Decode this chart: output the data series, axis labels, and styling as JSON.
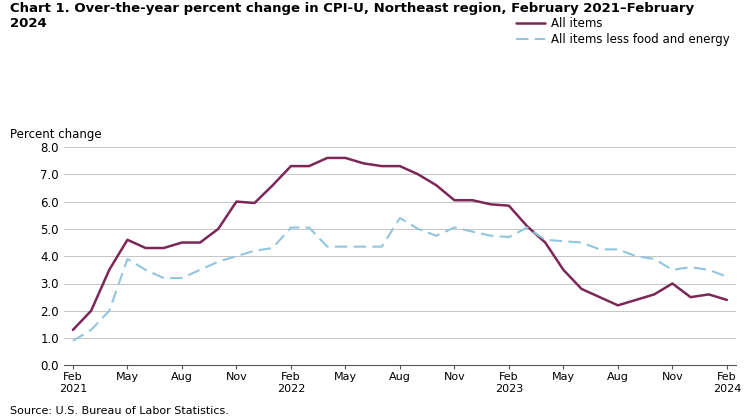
{
  "title": "Chart 1. Over-the-year percent change in CPI-U, Northeast region, February 2021–February\n2024",
  "ylabel": "Percent change",
  "source": "Source: U.S. Bureau of Labor Statistics.",
  "x_labels": [
    "Feb\n2021",
    "May",
    "Aug",
    "Nov",
    "Feb\n2022",
    "May",
    "Aug",
    "Nov",
    "Feb\n2023",
    "May",
    "Aug",
    "Nov",
    "Feb\n2024"
  ],
  "x_positions": [
    0,
    3,
    6,
    9,
    12,
    15,
    18,
    21,
    24,
    27,
    30,
    33,
    36
  ],
  "line1_color": "#7b2857",
  "line2_color": "#92c5de",
  "ylim": [
    0.0,
    8.0
  ],
  "yticks": [
    0.0,
    1.0,
    2.0,
    3.0,
    4.0,
    5.0,
    6.0,
    7.0,
    8.0
  ],
  "legend_label1": "All items",
  "legend_label2": "All items less food and energy",
  "background_color": "#ffffff",
  "grid_color": "#bbbbbb",
  "all_items_values": [
    1.3,
    2.0,
    3.5,
    4.6,
    4.3,
    4.3,
    4.5,
    4.5,
    5.0,
    6.0,
    5.95,
    6.6,
    7.3,
    7.3,
    7.6,
    7.6,
    7.4,
    7.3,
    7.3,
    7.0,
    6.6,
    6.05,
    6.05,
    5.9,
    5.85,
    5.1,
    4.5,
    3.5,
    2.8,
    2.5,
    2.2,
    2.4,
    2.6,
    3.0,
    2.5,
    2.6,
    2.4
  ],
  "all_items_less_values": [
    0.9,
    1.3,
    2.0,
    3.9,
    3.5,
    3.2,
    3.2,
    3.5,
    3.8,
    4.0,
    4.2,
    4.3,
    5.05,
    5.05,
    4.35,
    4.35,
    4.35,
    4.35,
    5.4,
    5.0,
    4.75,
    5.05,
    4.9,
    4.75,
    4.7,
    5.05,
    4.6,
    4.55,
    4.5,
    4.25,
    4.25,
    4.0,
    3.9,
    3.5,
    3.6,
    3.5,
    3.25
  ]
}
